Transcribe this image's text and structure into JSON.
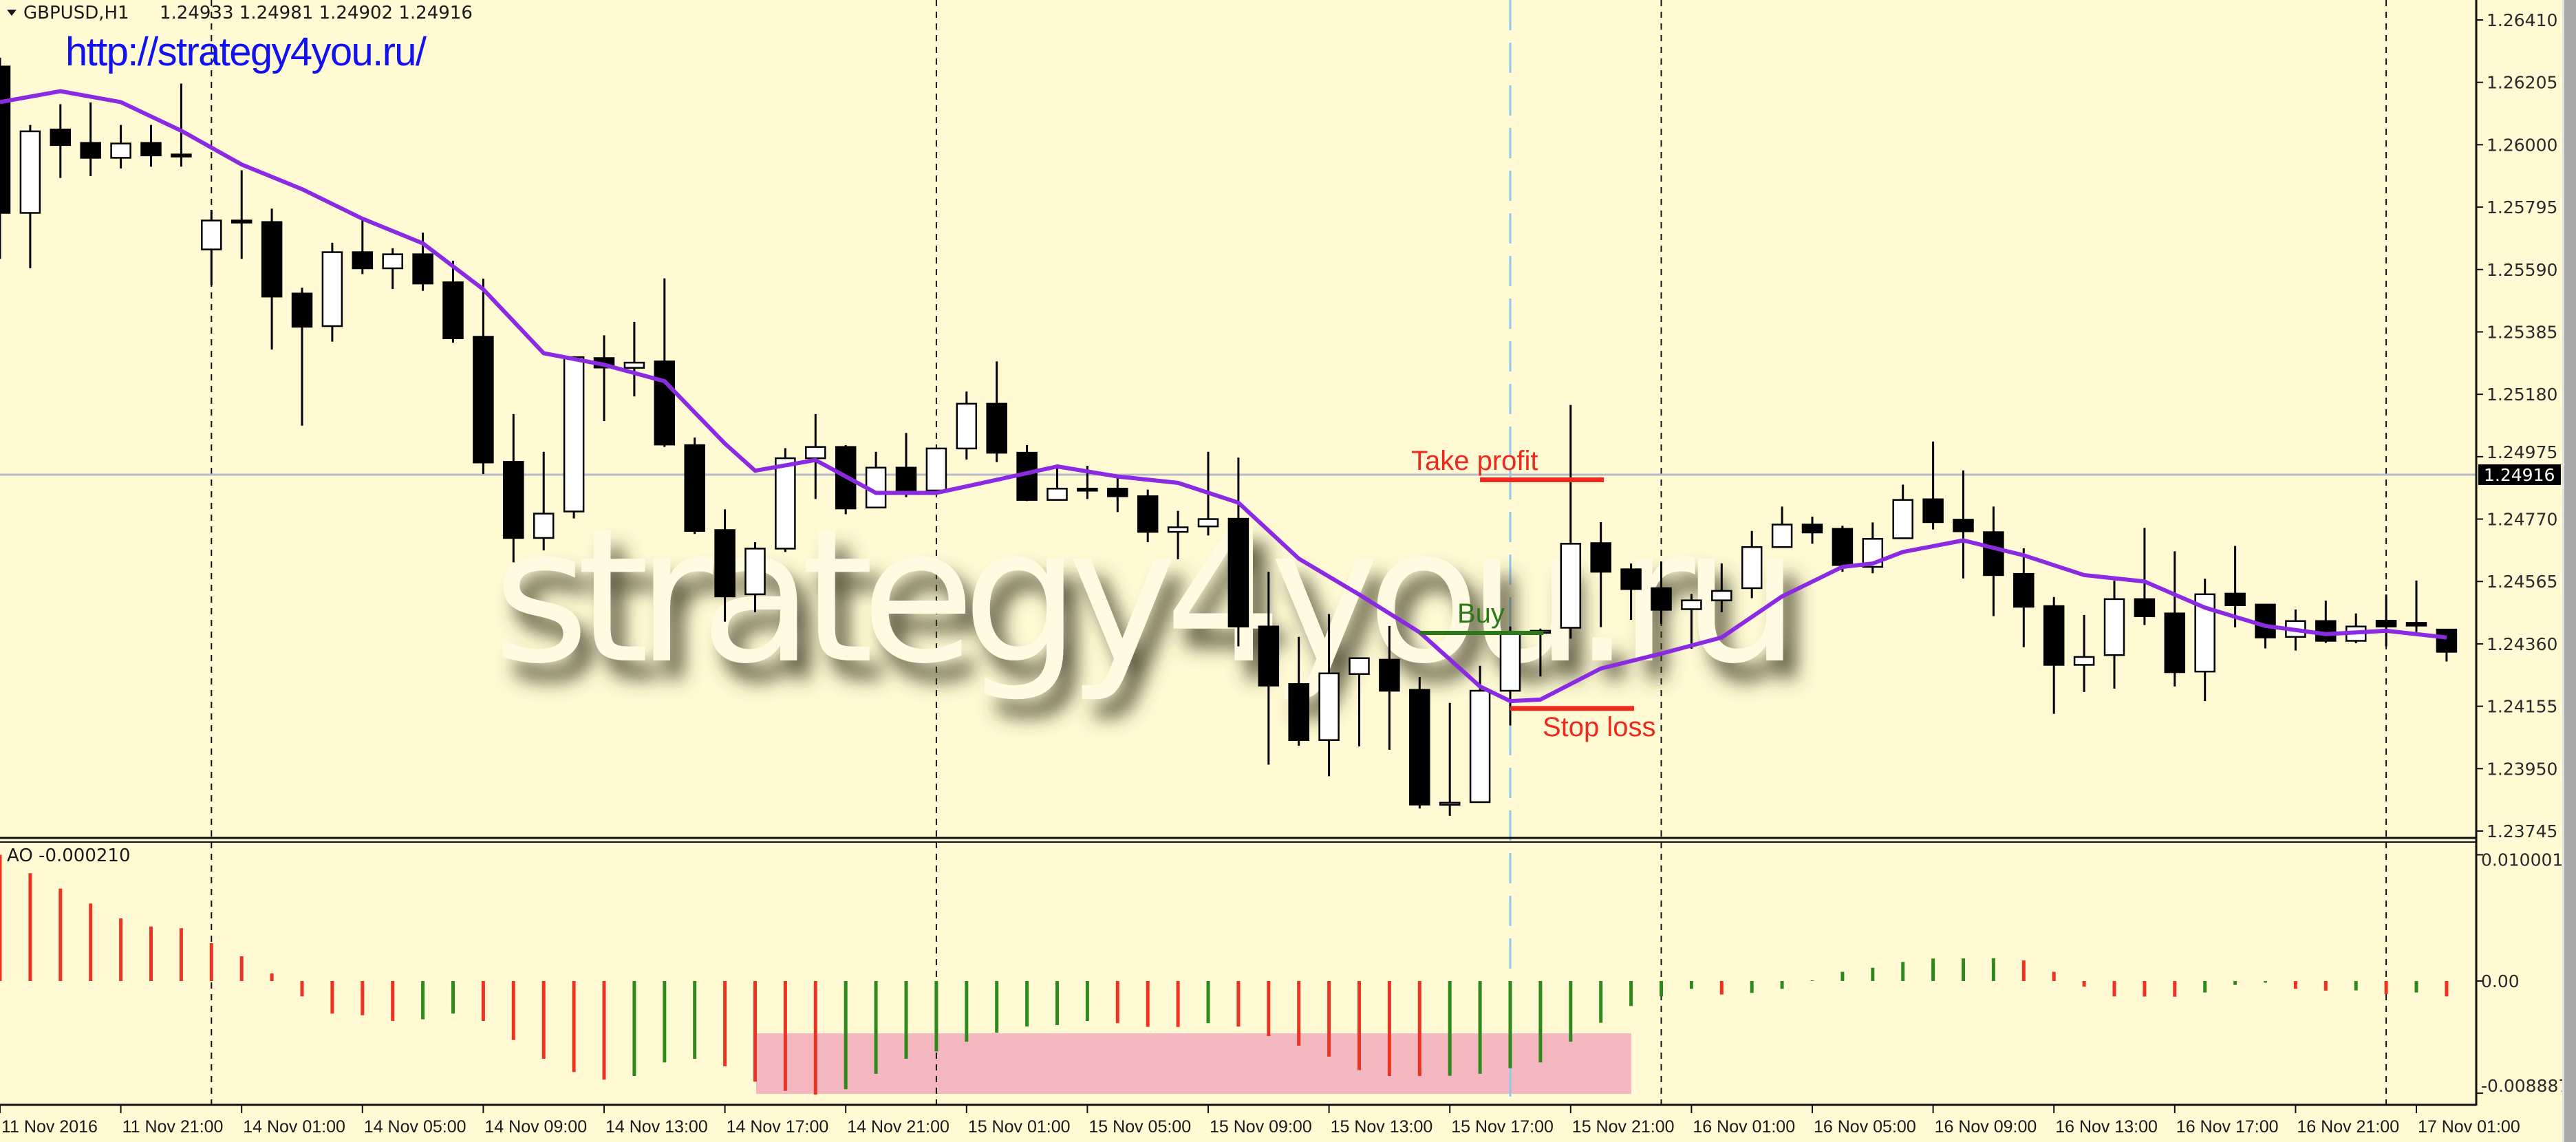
{
  "header": {
    "symbol_timeframe": "GBPUSD,H1",
    "ohlc": "1.24933 1.24981 1.24902 1.24916"
  },
  "link_text": "http://strategy4you.ru/",
  "watermark": "strategy4you.ru",
  "colors": {
    "background": "#fffad4",
    "bull_body": "#ffffff",
    "bear_body": "#000000",
    "ma_line": "#8a2be2",
    "ao_up": "#2f8a1e",
    "ao_down": "#ee3322",
    "highlight": "#f5b8c0",
    "take_profit": "#ee2a1e",
    "stop_loss": "#ee2a1e",
    "buy": "#2a7a1a",
    "bid_line": "#b8b8c8",
    "session_marker": "#8cc8f0"
  },
  "price_axis": {
    "ticks": [
      "1.26410",
      "1.26205",
      "1.26000",
      "1.25795",
      "1.25590",
      "1.25385",
      "1.25180",
      "1.24975",
      "1.24770",
      "1.24565",
      "1.24360",
      "1.24155",
      "1.23950",
      "1.23745"
    ],
    "current_price": "1.24916"
  },
  "ao_panel": {
    "label": "AO -0.000210",
    "ticks": [
      "0.010001",
      "0.00",
      "-0.008887"
    ]
  },
  "time_axis": {
    "labels": [
      "11 Nov 2016",
      "11 Nov 21:00",
      "14 Nov 01:00",
      "14 Nov 05:00",
      "14 Nov 09:00",
      "14 Nov 13:00",
      "14 Nov 17:00",
      "14 Nov 21:00",
      "15 Nov 01:00",
      "15 Nov 05:00",
      "15 Nov 09:00",
      "15 Nov 13:00",
      "15 Nov 17:00",
      "15 Nov 21:00",
      "16 Nov 01:00",
      "16 Nov 05:00",
      "16 Nov 09:00",
      "16 Nov 13:00",
      "16 Nov 17:00",
      "16 Nov 21:00",
      "17 Nov 01:00"
    ]
  },
  "annotations": {
    "take_profit": {
      "label": "Take profit",
      "price": 1.24899
    },
    "buy": {
      "label": "Buy",
      "price": 1.24396
    },
    "stop_loss": {
      "label": "Stop loss",
      "price": 1.24148
    }
  },
  "chart_data": {
    "type": "candlestick",
    "symbol": "GBPUSD",
    "timeframe": "H1",
    "ylim": [
      1.23722,
      1.26476
    ],
    "ohlc": [
      [
        1.26257,
        1.26286,
        1.25625,
        1.25776
      ],
      [
        1.25776,
        1.26065,
        1.25594,
        1.26044
      ],
      [
        1.2605,
        1.26133,
        1.25891,
        1.25999
      ],
      [
        1.26006,
        1.26139,
        1.25897,
        1.25957
      ],
      [
        1.25957,
        1.26065,
        1.25922,
        1.26004
      ],
      [
        1.26006,
        1.26065,
        1.25928,
        1.25965
      ],
      [
        1.25968,
        1.26201,
        1.25928,
        1.25965
      ],
      [
        1.25656,
        1.25786,
        1.25538,
        1.25751
      ],
      [
        1.25751,
        1.25916,
        1.25625,
        1.25749
      ],
      [
        1.25746,
        1.2579,
        1.25327,
        1.25501
      ],
      [
        1.25511,
        1.2553,
        1.25077,
        1.25402
      ],
      [
        1.25404,
        1.25678,
        1.25353,
        1.25647
      ],
      [
        1.25647,
        1.25755,
        1.25575,
        1.25594
      ],
      [
        1.25594,
        1.2566,
        1.25526,
        1.2564
      ],
      [
        1.2564,
        1.25711,
        1.2552,
        1.25544
      ],
      [
        1.25548,
        1.25619,
        1.2535,
        1.25364
      ],
      [
        1.25369,
        1.2556,
        1.24918,
        1.24956
      ],
      [
        1.24958,
        1.25115,
        1.24628,
        1.24708
      ],
      [
        1.24708,
        1.24991,
        1.24667,
        1.24788
      ],
      [
        1.24795,
        1.25305,
        1.24772,
        1.25302
      ],
      [
        1.25299,
        1.25374,
        1.25092,
        1.25268
      ],
      [
        1.25267,
        1.25418,
        1.25173,
        1.25284
      ],
      [
        1.25288,
        1.25561,
        1.25007,
        1.25015
      ],
      [
        1.25013,
        1.25038,
        1.24721,
        1.24731
      ],
      [
        1.24734,
        1.24802,
        1.24433,
        1.24516
      ],
      [
        1.24523,
        1.24694,
        1.24464,
        1.24673
      ],
      [
        1.24673,
        1.25003,
        1.24662,
        1.2497
      ],
      [
        1.2497,
        1.25115,
        1.24836,
        1.25007
      ],
      [
        1.25007,
        1.25013,
        1.24786,
        1.24805
      ],
      [
        1.24808,
        1.24991,
        1.24805,
        1.24939
      ],
      [
        1.24939,
        1.25053,
        1.24842,
        1.24858
      ],
      [
        1.24864,
        1.25004,
        1.24856,
        1.25002
      ],
      [
        1.25002,
        1.25189,
        1.24966,
        1.25149
      ],
      [
        1.25149,
        1.25288,
        1.24957,
        1.24988
      ],
      [
        1.24988,
        1.25013,
        1.24829,
        1.24833
      ],
      [
        1.24833,
        1.24939,
        1.24831,
        1.2487
      ],
      [
        1.2487,
        1.24945,
        1.24836,
        1.24864
      ],
      [
        1.2487,
        1.2491,
        1.24793,
        1.24845
      ],
      [
        1.24845,
        1.24867,
        1.24694,
        1.24728
      ],
      [
        1.24728,
        1.24797,
        1.24638,
        1.24743
      ],
      [
        1.24746,
        1.24991,
        1.24716,
        1.2477
      ],
      [
        1.24771,
        1.24972,
        1.24352,
        1.24417
      ],
      [
        1.24417,
        1.24597,
        1.23963,
        1.24223
      ],
      [
        1.24228,
        1.24383,
        1.24025,
        1.24044
      ],
      [
        1.24044,
        1.24458,
        1.23925,
        1.24263
      ],
      [
        1.24261,
        1.24315,
        1.24023,
        1.24313
      ],
      [
        1.24308,
        1.24419,
        1.24012,
        1.24206
      ],
      [
        1.24209,
        1.24251,
        1.23819,
        1.23832
      ],
      [
        1.23836,
        1.24166,
        1.23795,
        1.23838
      ],
      [
        1.2384,
        1.24288,
        1.23838,
        1.24206
      ],
      [
        1.24206,
        1.24417,
        1.24092,
        1.24396
      ],
      [
        1.24401,
        1.2441,
        1.24253,
        1.24403
      ],
      [
        1.24413,
        1.25145,
        1.24377,
        1.24689
      ],
      [
        1.24691,
        1.2476,
        1.24415,
        1.24597
      ],
      [
        1.24605,
        1.24624,
        1.24439,
        1.2454
      ],
      [
        1.24543,
        1.2463,
        1.24426,
        1.24472
      ],
      [
        1.24474,
        1.24524,
        1.24344,
        1.24503
      ],
      [
        1.24503,
        1.24624,
        1.24464,
        1.24534
      ],
      [
        1.24543,
        1.24731,
        1.2451,
        1.24678
      ],
      [
        1.24678,
        1.24811,
        1.24676,
        1.24752
      ],
      [
        1.24752,
        1.24778,
        1.24689,
        1.24726
      ],
      [
        1.24738,
        1.24748,
        1.24597,
        1.24619
      ],
      [
        1.24613,
        1.24759,
        1.24592,
        1.24705
      ],
      [
        1.24707,
        1.24883,
        1.24705,
        1.24833
      ],
      [
        1.24835,
        1.25025,
        1.24736,
        1.2476
      ],
      [
        1.24768,
        1.2493,
        1.24575,
        1.2473
      ],
      [
        1.24727,
        1.24811,
        1.24451,
        1.24586
      ],
      [
        1.2459,
        1.24674,
        1.24349,
        1.24482
      ],
      [
        1.24484,
        1.24514,
        1.2413,
        1.24291
      ],
      [
        1.24291,
        1.24455,
        1.24202,
        1.24317
      ],
      [
        1.24323,
        1.24568,
        1.24213,
        1.24507
      ],
      [
        1.24507,
        1.24741,
        1.24422,
        1.24451
      ],
      [
        1.2446,
        1.24664,
        1.2422,
        1.24267
      ],
      [
        1.24269,
        1.24574,
        1.24172,
        1.24523
      ],
      [
        1.24525,
        1.24682,
        1.24414,
        1.24487
      ],
      [
        1.24489,
        1.2449,
        1.24345,
        1.24381
      ],
      [
        1.24383,
        1.24473,
        1.24338,
        1.24435
      ],
      [
        1.24435,
        1.24502,
        1.24363,
        1.2437
      ],
      [
        1.2437,
        1.2446,
        1.24362,
        1.24417
      ],
      [
        1.24436,
        1.24522,
        1.24352,
        1.24417
      ],
      [
        1.24429,
        1.24568,
        1.24399,
        1.2442
      ],
      [
        1.24407,
        1.24409,
        1.24302,
        1.24334
      ]
    ],
    "moving_average": [
      [
        0,
        1.2614
      ],
      [
        2,
        1.26176
      ],
      [
        4,
        1.2614
      ],
      [
        6,
        1.26046
      ],
      [
        8,
        1.25935
      ],
      [
        10,
        1.25854
      ],
      [
        12,
        1.25757
      ],
      [
        14,
        1.25676
      ],
      [
        16,
        1.25525
      ],
      [
        18,
        1.25315
      ],
      [
        20,
        1.25277
      ],
      [
        22,
        1.25223
      ],
      [
        24,
        1.25018
      ],
      [
        25,
        1.24929
      ],
      [
        27,
        1.24964
      ],
      [
        29,
        1.24856
      ],
      [
        31,
        1.24856
      ],
      [
        33,
        1.24899
      ],
      [
        35,
        1.24943
      ],
      [
        37,
        1.2491
      ],
      [
        39,
        1.24889
      ],
      [
        41,
        1.24824
      ],
      [
        43,
        1.2464
      ],
      [
        45,
        1.24522
      ],
      [
        47,
        1.24398
      ],
      [
        49,
        1.2422
      ],
      [
        50,
        1.24172
      ],
      [
        51,
        1.24177
      ],
      [
        53,
        1.24279
      ],
      [
        55,
        1.24328
      ],
      [
        57,
        1.24381
      ],
      [
        59,
        1.24516
      ],
      [
        61,
        1.24613
      ],
      [
        62,
        1.24624
      ],
      [
        63,
        1.24662
      ],
      [
        65,
        1.247
      ],
      [
        67,
        1.24651
      ],
      [
        69,
        1.24586
      ],
      [
        71,
        1.24565
      ],
      [
        73,
        1.24479
      ],
      [
        75,
        1.24419
      ],
      [
        77,
        1.24392
      ],
      [
        79,
        1.24403
      ],
      [
        81,
        1.24381
      ]
    ],
    "ao_ylim": [
      -0.008887,
      0.010001
    ],
    "ao": [
      0.01,
      0.00854,
      0.00732,
      0.00614,
      0.00496,
      0.00432,
      0.00419,
      0.003,
      0.00196,
      0.0006,
      -0.00122,
      -0.00258,
      -0.00271,
      -0.00316,
      -0.00303,
      -0.00258,
      -0.00316,
      -0.00467,
      -0.00616,
      -0.00721,
      -0.00781,
      -0.00752,
      -0.00645,
      -0.00616,
      -0.00676,
      -0.00797,
      -0.0087,
      -0.00899,
      -0.00857,
      -0.00735,
      -0.00616,
      -0.00558,
      -0.00481,
      -0.00409,
      -0.00361,
      -0.00349,
      -0.00316,
      -0.00334,
      -0.00363,
      -0.00364,
      -0.00334,
      -0.00361,
      -0.00436,
      -0.00512,
      -0.00599,
      -0.00706,
      -0.00752,
      -0.00753,
      -0.00751,
      -0.00735,
      -0.0069,
      -0.00645,
      -0.00481,
      -0.00331,
      -0.00198,
      -0.00122,
      -0.00062,
      -0.00107,
      -0.00094,
      -0.00062,
      5e-05,
      0.00073,
      0.00105,
      0.00151,
      0.00178,
      0.00179,
      0.00181,
      0.00163,
      0.00073,
      -0.00045,
      -0.00122,
      -0.00123,
      -0.00124,
      -0.00091,
      -0.00031,
      -0.00013,
      -0.00062,
      -0.00076,
      -0.00074,
      -0.00104,
      -0.00091,
      -0.00122
    ]
  }
}
